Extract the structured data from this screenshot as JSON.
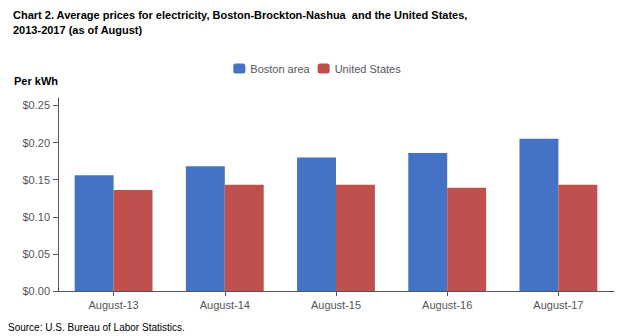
{
  "chart_data": {
    "type": "bar",
    "title": "Chart 2. Average prices for electricity, Boston-Brockton-Nashua  and the United States,",
    "subtitle": "2013-2017 (as of August)",
    "ylabel": "Per kWh",
    "source": "Source: U.S. Bureau of Labor Statistics.",
    "categories": [
      "August-13",
      "August-14",
      "August-15",
      "August-16",
      "August-17"
    ],
    "series": [
      {
        "name": "Boston area",
        "color": "#4472C4",
        "values": [
          0.156,
          0.168,
          0.18,
          0.186,
          0.205
        ]
      },
      {
        "name": "United States",
        "color": "#C0504D",
        "values": [
          0.136,
          0.143,
          0.143,
          0.139,
          0.143
        ]
      }
    ],
    "ylim": [
      0,
      0.26
    ],
    "yticks": [
      {
        "value": 0.0,
        "label": "$0.00"
      },
      {
        "value": 0.05,
        "label": "$0.05"
      },
      {
        "value": 0.1,
        "label": "$0.10"
      },
      {
        "value": 0.15,
        "label": "$0.15"
      },
      {
        "value": 0.2,
        "label": "$0.20"
      },
      {
        "value": 0.25,
        "label": "$0.25"
      }
    ],
    "grid": false,
    "legend": "upper center"
  }
}
